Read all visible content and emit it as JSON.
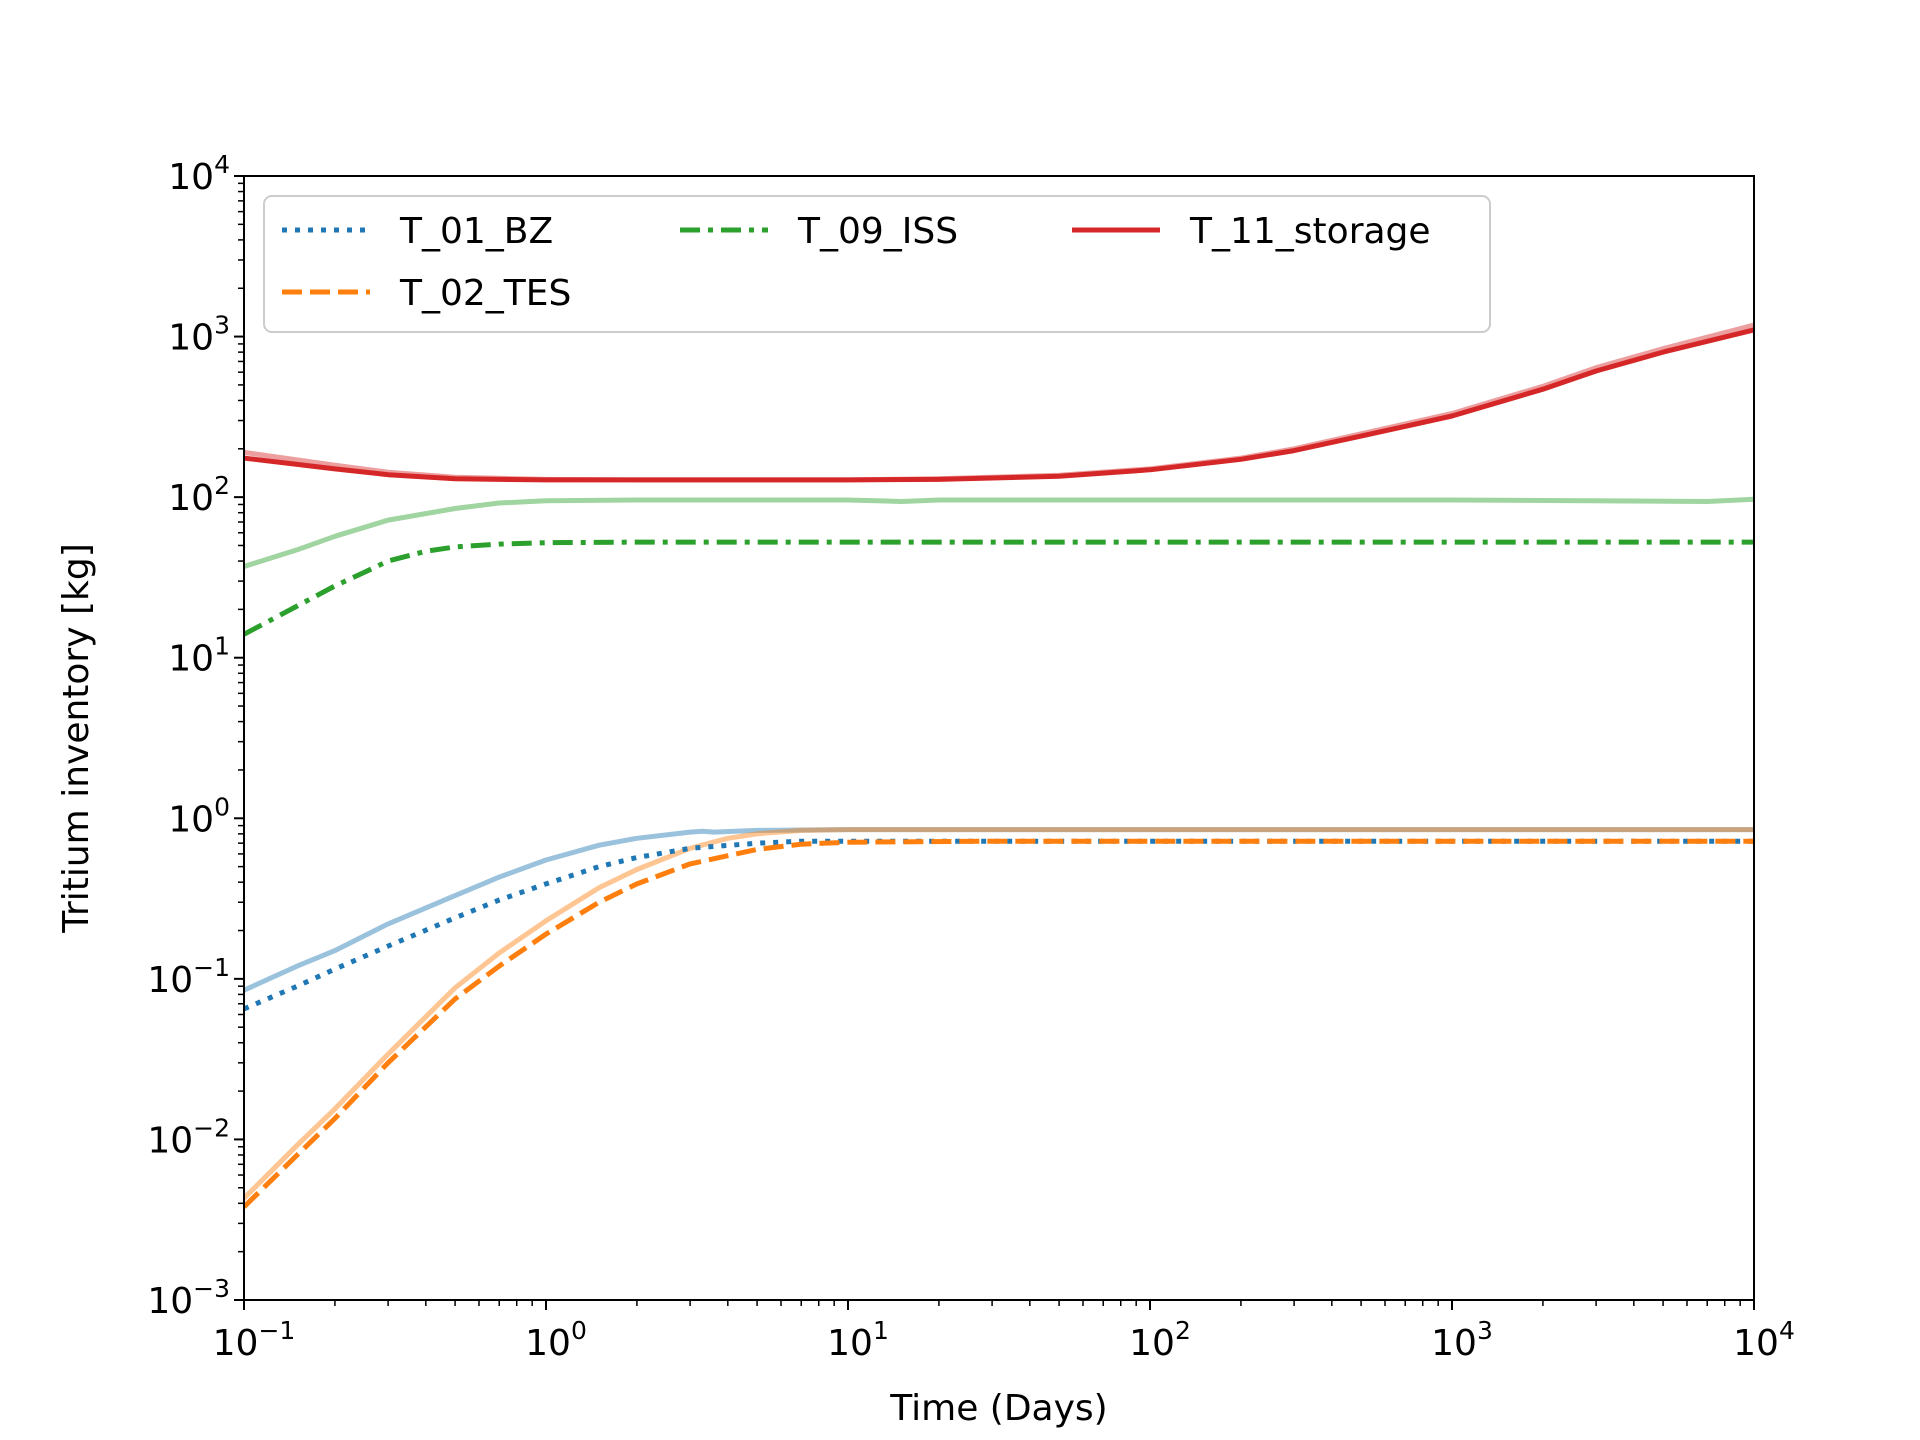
{
  "chart_data": {
    "type": "line",
    "xlabel": "Time (Days)",
    "ylabel": "Tritium inventory [kg]",
    "xscale": "log",
    "yscale": "log",
    "xlim": [
      0.1,
      10000
    ],
    "ylim": [
      0.001,
      10000
    ],
    "x_ticks": [
      {
        "base": "10",
        "exp": "−1",
        "value": 0.1
      },
      {
        "base": "10",
        "exp": "0",
        "value": 1
      },
      {
        "base": "10",
        "exp": "1",
        "value": 10
      },
      {
        "base": "10",
        "exp": "2",
        "value": 100
      },
      {
        "base": "10",
        "exp": "3",
        "value": 1000
      },
      {
        "base": "10",
        "exp": "4",
        "value": 10000
      }
    ],
    "y_ticks": [
      {
        "base": "10",
        "exp": "−3",
        "value": 0.001
      },
      {
        "base": "10",
        "exp": "−2",
        "value": 0.01
      },
      {
        "base": "10",
        "exp": "−1",
        "value": 0.1
      },
      {
        "base": "10",
        "exp": "0",
        "value": 1
      },
      {
        "base": "10",
        "exp": "1",
        "value": 10
      },
      {
        "base": "10",
        "exp": "2",
        "value": 100
      },
      {
        "base": "10",
        "exp": "3",
        "value": 1000
      },
      {
        "base": "10",
        "exp": "4",
        "value": 10000
      }
    ],
    "grid": false,
    "legend": {
      "placement": "top-left",
      "columns": 3
    },
    "series": [
      {
        "name": "T_01_BZ",
        "color": "#1f77b4",
        "style": "dotted",
        "in_legend": true,
        "x": [
          0.1,
          0.15,
          0.2,
          0.3,
          0.5,
          0.7,
          1,
          1.5,
          2,
          3,
          5,
          7,
          10,
          30,
          100,
          1000,
          10000
        ],
        "y": [
          0.065,
          0.09,
          0.115,
          0.16,
          0.24,
          0.31,
          0.39,
          0.5,
          0.57,
          0.65,
          0.7,
          0.72,
          0.72,
          0.72,
          0.72,
          0.72,
          0.72
        ]
      },
      {
        "name": "",
        "color": "#1f77b4",
        "style": "solid-faded",
        "in_legend": false,
        "x": [
          0.1,
          0.15,
          0.2,
          0.3,
          0.5,
          0.7,
          1,
          1.5,
          2,
          3,
          3.3,
          3.6,
          5,
          10,
          100,
          1000,
          10000
        ],
        "y": [
          0.085,
          0.12,
          0.15,
          0.22,
          0.33,
          0.43,
          0.55,
          0.68,
          0.75,
          0.82,
          0.83,
          0.82,
          0.84,
          0.85,
          0.85,
          0.85,
          0.85
        ]
      },
      {
        "name": "T_02_TES",
        "color": "#ff7f0e",
        "style": "dashed",
        "in_legend": true,
        "x": [
          0.1,
          0.15,
          0.2,
          0.3,
          0.5,
          0.7,
          1,
          1.5,
          2,
          3,
          5,
          7,
          10,
          30,
          100,
          1000,
          10000
        ],
        "y": [
          0.0038,
          0.008,
          0.0135,
          0.03,
          0.075,
          0.12,
          0.19,
          0.3,
          0.39,
          0.52,
          0.64,
          0.69,
          0.71,
          0.72,
          0.72,
          0.72,
          0.72
        ]
      },
      {
        "name": "",
        "color": "#ff7f0e",
        "style": "solid-faded",
        "in_legend": false,
        "x": [
          0.1,
          0.15,
          0.2,
          0.3,
          0.5,
          0.7,
          1,
          1.5,
          2,
          3,
          4,
          5,
          7,
          10,
          100,
          1000,
          10000
        ],
        "y": [
          0.0043,
          0.0092,
          0.0155,
          0.034,
          0.088,
          0.145,
          0.23,
          0.37,
          0.48,
          0.65,
          0.75,
          0.8,
          0.84,
          0.85,
          0.85,
          0.85,
          0.85
        ]
      },
      {
        "name": "T_09_ISS",
        "color": "#2ca02c",
        "style": "dashdot",
        "in_legend": true,
        "x": [
          0.1,
          0.15,
          0.2,
          0.25,
          0.3,
          0.4,
          0.5,
          0.7,
          1,
          2,
          10,
          100,
          1000,
          10000
        ],
        "y": [
          14,
          21,
          28,
          34,
          40,
          46,
          49,
          51,
          52,
          52.5,
          52.5,
          52.5,
          52.5,
          52.5
        ]
      },
      {
        "name": "",
        "color": "#2ca02c",
        "style": "solid-faded",
        "in_legend": false,
        "x": [
          0.1,
          0.15,
          0.2,
          0.3,
          0.5,
          0.7,
          1,
          2,
          10,
          15,
          20,
          100,
          1000,
          7000,
          10000
        ],
        "y": [
          37,
          47,
          57,
          72,
          85,
          92,
          95,
          96,
          96,
          94,
          96,
          96,
          96,
          94,
          97
        ]
      },
      {
        "name": "T_11_storage",
        "color": "#d62728",
        "style": "solid",
        "in_legend": true,
        "x": [
          0.1,
          0.2,
          0.3,
          0.5,
          1,
          2,
          5,
          10,
          20,
          50,
          100,
          200,
          300,
          500,
          1000,
          2000,
          3000,
          5000,
          10000
        ],
        "y": [
          175,
          150,
          138,
          130,
          128,
          128,
          128,
          128,
          129,
          135,
          148,
          172,
          195,
          240,
          320,
          470,
          610,
          800,
          1100
        ]
      },
      {
        "name": "",
        "color": "#d62728",
        "style": "solid-faded",
        "in_legend": false,
        "x": [
          0.1,
          0.2,
          0.3,
          0.5,
          1,
          2,
          5,
          10,
          20,
          50,
          100,
          200,
          300,
          500,
          1000,
          2000,
          3000,
          5000,
          10000
        ],
        "y": [
          190,
          158,
          143,
          133,
          129,
          128,
          128,
          128,
          130,
          137,
          150,
          175,
          200,
          248,
          332,
          490,
          640,
          840,
          1180
        ]
      }
    ]
  }
}
